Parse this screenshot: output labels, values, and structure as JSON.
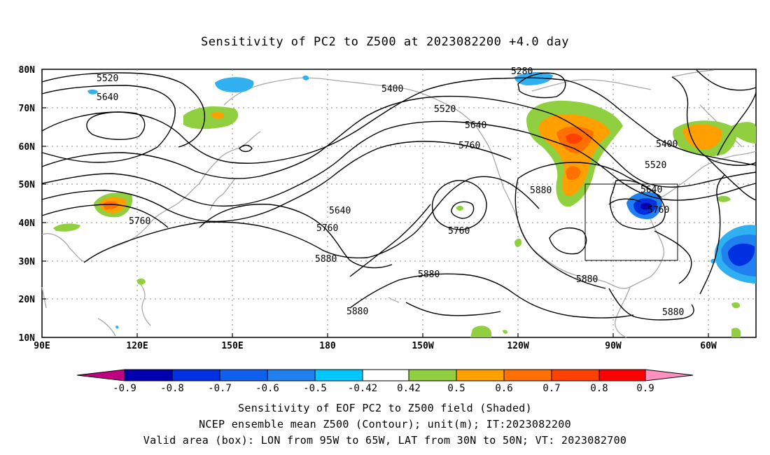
{
  "title": "Sensitivity of PC2 to Z500 at 2023082200 +4.0 day",
  "axes": {
    "lat_labels": [
      "80N",
      "70N",
      "60N",
      "50N",
      "40N",
      "30N",
      "20N",
      "10N"
    ],
    "lon_labels": [
      "90E",
      "120E",
      "150E",
      "180",
      "150W",
      "120W",
      "90W",
      "60W"
    ]
  },
  "contour_labels": [
    "5520",
    "5640",
    "5400",
    "5280",
    "5520",
    "5640",
    "5760",
    "5400",
    "5520",
    "5640",
    "5760",
    "5880",
    "5640",
    "5760",
    "5760",
    "5880",
    "5880",
    "5880",
    "5880",
    "5880",
    "5760"
  ],
  "colorbar": {
    "labels": [
      "-0.9",
      "-0.8",
      "-0.7",
      "-0.6",
      "-0.5",
      "-0.42",
      "0.42",
      "0.5",
      "0.6",
      "0.7",
      "0.8",
      "0.9"
    ],
    "colors": [
      "#c00080",
      "#0000b0",
      "#0030e0",
      "#1060f0",
      "#2080f0",
      "#30b0f0",
      "#00c8ff",
      "#ffffff",
      "#90d040",
      "#ffa000",
      "#ff7000",
      "#ff4000",
      "#ff0000",
      "#ff90c0"
    ]
  },
  "captions": [
    "Sensitivity of EOF PC2 to Z500 field (Shaded)",
    "NCEP ensemble mean Z500 (Contour); unit(m); IT:2023082200",
    "Valid area (box): LON from 95W to 65W, LAT from 30N to 50N; VT: 2023082700"
  ]
}
